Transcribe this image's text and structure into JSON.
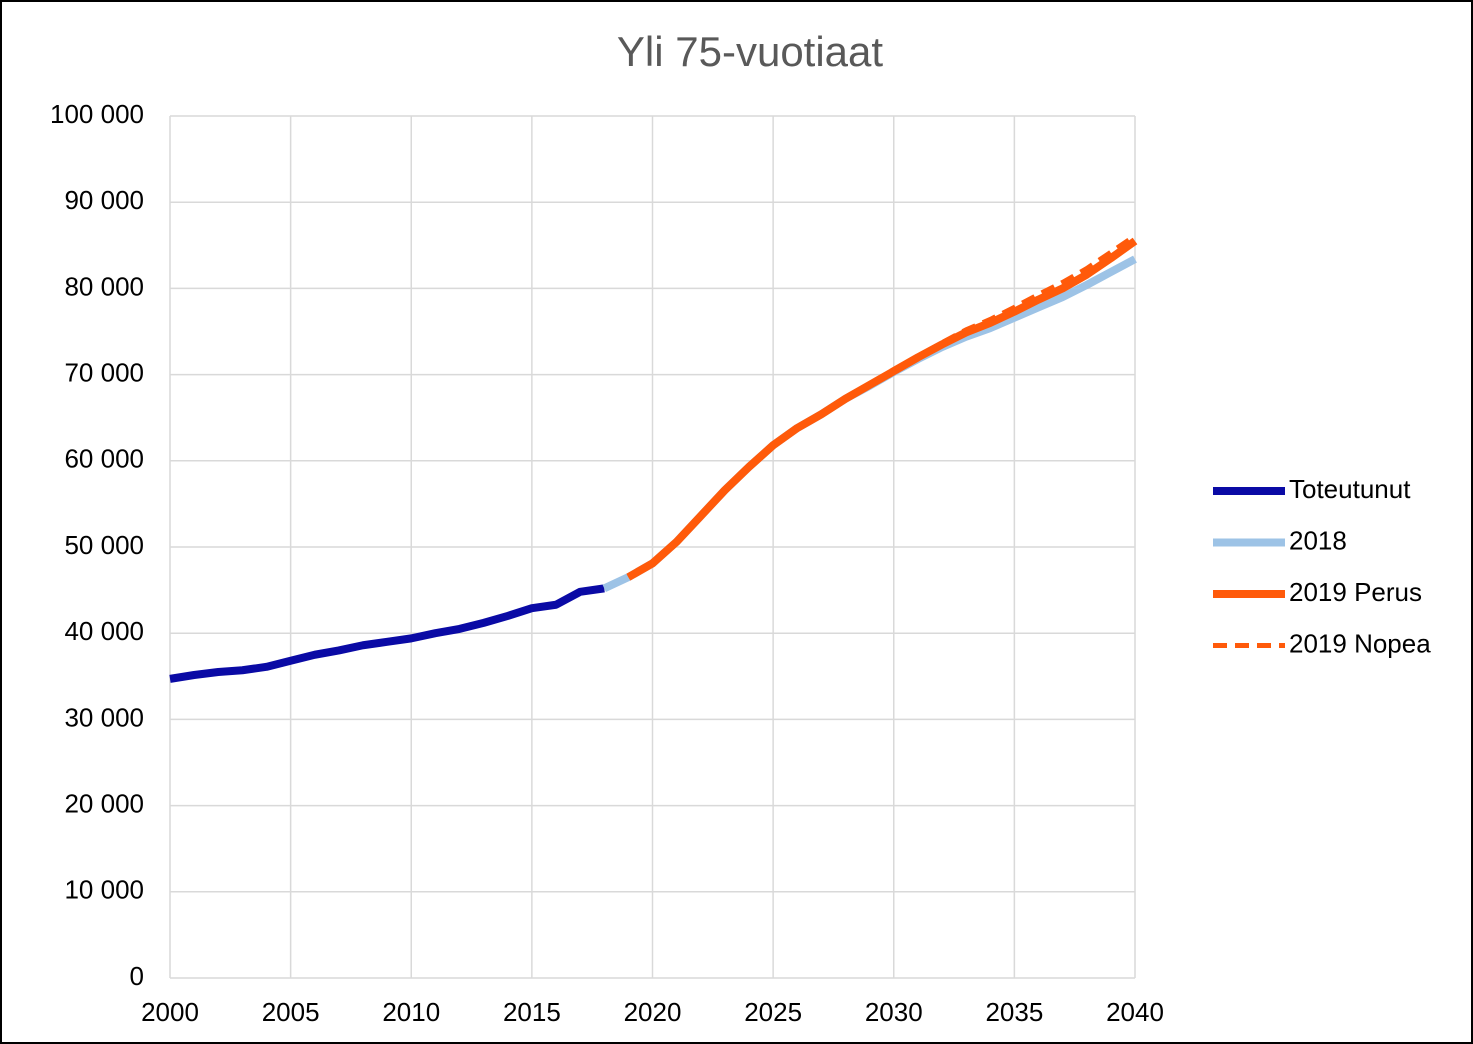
{
  "chart_data": {
    "type": "line",
    "title": "Yli 75-vuotiaat",
    "x": [
      2000,
      2001,
      2002,
      2003,
      2004,
      2005,
      2006,
      2007,
      2008,
      2009,
      2010,
      2011,
      2012,
      2013,
      2014,
      2015,
      2016,
      2017,
      2018,
      2019,
      2020,
      2021,
      2022,
      2023,
      2024,
      2025,
      2026,
      2027,
      2028,
      2029,
      2030,
      2031,
      2032,
      2033,
      2034,
      2035,
      2036,
      2037,
      2038,
      2039,
      2040
    ],
    "series": [
      {
        "name": "Toteutunut",
        "color": "#0a0aa5",
        "dashed": false,
        "values": [
          34700,
          35150,
          35500,
          35700,
          36100,
          36800,
          37500,
          38000,
          38600,
          39000,
          39400,
          40000,
          40500,
          41200,
          42000,
          42900,
          43300,
          44800,
          45200,
          null,
          null,
          null,
          null,
          null,
          null,
          null,
          null,
          null,
          null,
          null,
          null,
          null,
          null,
          null,
          null,
          null,
          null,
          null,
          null,
          null,
          null
        ]
      },
      {
        "name": "2018",
        "color": "#9dc3e6",
        "dashed": false,
        "values": [
          null,
          null,
          null,
          null,
          null,
          null,
          null,
          null,
          null,
          null,
          null,
          null,
          null,
          null,
          null,
          null,
          null,
          null,
          45200,
          46500,
          48100,
          50600,
          53600,
          56600,
          59300,
          61800,
          63800,
          65400,
          67200,
          68700,
          70300,
          71800,
          73200,
          74400,
          75400,
          76600,
          77800,
          79000,
          80400,
          81900,
          83400
        ]
      },
      {
        "name": "2019 Perus",
        "color": "#ff5a0a",
        "dashed": false,
        "values": [
          null,
          null,
          null,
          null,
          null,
          null,
          null,
          null,
          null,
          null,
          null,
          null,
          null,
          null,
          null,
          null,
          null,
          null,
          null,
          46500,
          48100,
          50600,
          53600,
          56600,
          59300,
          61800,
          63800,
          65400,
          67200,
          68800,
          70400,
          72000,
          73500,
          74900,
          76000,
          77300,
          78700,
          80000,
          81600,
          83500,
          85500
        ]
      },
      {
        "name": "2019 Nopea",
        "color": "#ff5a0a",
        "dashed": true,
        "values": [
          null,
          null,
          null,
          null,
          null,
          null,
          null,
          null,
          null,
          null,
          null,
          null,
          null,
          null,
          null,
          null,
          null,
          null,
          null,
          46500,
          48100,
          50600,
          53600,
          56600,
          59300,
          61800,
          63800,
          65400,
          67200,
          68800,
          70500,
          72100,
          73700,
          75200,
          76400,
          77800,
          79300,
          80700,
          82300,
          84200,
          86100
        ]
      }
    ],
    "xlim": [
      2000,
      2040
    ],
    "xticks": [
      2000,
      2005,
      2010,
      2015,
      2020,
      2025,
      2030,
      2035,
      2040
    ],
    "ylim": [
      0,
      100000
    ],
    "yticks": [
      0,
      {
        "value": 10000,
        "label": "10 000"
      },
      {
        "value": 20000,
        "label": "20 000"
      },
      {
        "value": 30000,
        "label": "30 000"
      },
      {
        "value": 40000,
        "label": "40 000"
      },
      {
        "value": 50000,
        "label": "50 000"
      },
      {
        "value": 60000,
        "label": "60 000"
      },
      {
        "value": 70000,
        "label": "70 000"
      },
      {
        "value": 80000,
        "label": "80 000"
      },
      {
        "value": 90000,
        "label": "90 000"
      },
      {
        "value": 100000,
        "label": "100 000"
      }
    ],
    "grid": true,
    "legend": "right"
  }
}
